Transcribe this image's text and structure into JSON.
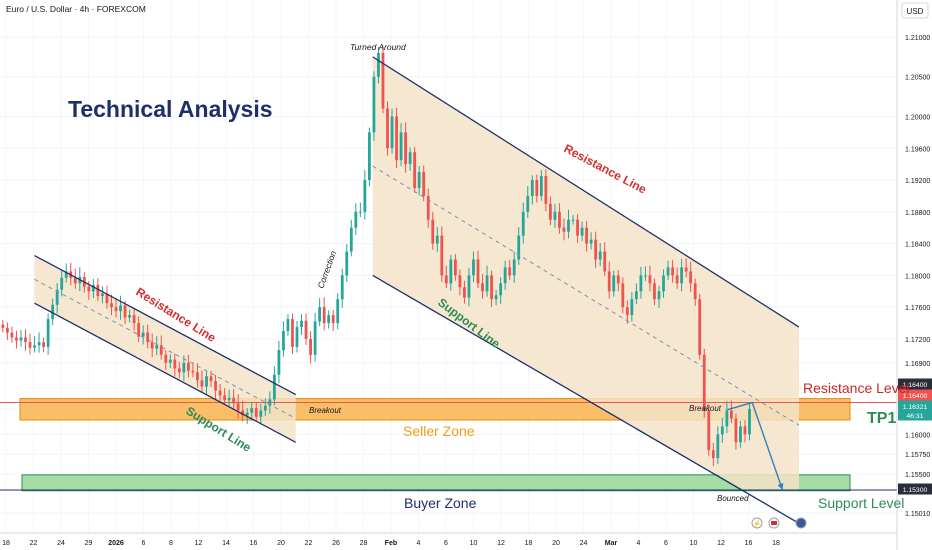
{
  "symbol_header": "Euro / U.S. Dollar · 4h · FOREXCOM",
  "currency_label": "USD",
  "headline": "Technical Analysis",
  "colors": {
    "up": "#26a69a",
    "down": "#ef5350",
    "channel_line": "#1e2f6b",
    "channel_fill": "#f3e3c8",
    "seller_zone": "#f7a834",
    "buyer_zone": "#8fd48f",
    "resistance_text": "#d32f2f",
    "support_text": "#2e8b57",
    "zone_label_orange": "#f39c12",
    "projection_arrow": "#2f7fc1"
  },
  "annotations": {
    "turned_around": "Turned Around",
    "correction": "Correction",
    "breakout_left": "Breakout",
    "breakout_right": "Breakout",
    "bounced": "Bounced",
    "resistance_line_left": "Resistance Line",
    "support_line_left": "Support Line",
    "resistance_line_right": "Resistance Line",
    "support_line_right": "Support Line",
    "seller_zone": "Seller Zone",
    "buyer_zone": "Buyer Zone",
    "resistance_level": "Resistance Level",
    "support_level": "Support Level",
    "tp1": "TP1"
  },
  "price_badges": [
    {
      "label": "1.16400",
      "value": 1.164,
      "color": "#2a2e39"
    },
    {
      "label": "1.16400",
      "value": 1.16385,
      "color": "#ef5350"
    },
    {
      "label": "1.16321",
      "value": 1.16321,
      "color": "#26a69a"
    },
    {
      "label": "46:31",
      "value": 1.1629,
      "color": "#26a69a"
    },
    {
      "label": "1.15300",
      "value": 1.153,
      "color": "#2a2e39"
    }
  ],
  "chart_data": {
    "type": "candlestick",
    "y_axis_ticks": [
      "1.21000",
      "1.20500",
      "1.20000",
      "1.19600",
      "1.19200",
      "1.18800",
      "1.18400",
      "1.18000",
      "1.17600",
      "1.17200",
      "1.16900",
      "1.16000",
      "1.15750",
      "1.15500",
      "1.15010"
    ],
    "x_axis_ticks": [
      "18",
      "22",
      "24",
      "29",
      "2026",
      "6",
      "8",
      "12",
      "14",
      "16",
      "20",
      "22",
      "26",
      "28",
      "Feb",
      "4",
      "6",
      "10",
      "12",
      "18",
      "20",
      "24",
      "Mar",
      "4",
      "6",
      "10",
      "12",
      "16",
      "18"
    ],
    "ylim": [
      1.1495,
      1.213
    ],
    "resistance_level": 1.164,
    "support_level": 1.153,
    "seller_zone": [
      1.1618,
      1.1645
    ],
    "buyer_zone": [
      1.1529,
      1.1549
    ],
    "left_channel": {
      "upper": [
        [
          1,
          1.1825
        ],
        [
          10.5,
          1.165
        ]
      ],
      "lower": [
        [
          1,
          1.1765
        ],
        [
          10.5,
          1.159
        ]
      ]
    },
    "right_channel": {
      "upper": [
        [
          13.3,
          1.2075
        ],
        [
          28.8,
          1.1735
        ]
      ],
      "lower": [
        [
          13.3,
          1.18
        ],
        [
          28.8,
          1.1488
        ]
      ]
    },
    "projection_path": [
      [
        26.2,
        1.1631
      ],
      [
        27.1,
        1.164
      ],
      [
        28.2,
        1.153
      ]
    ],
    "closes": [
      1.1734,
      1.1728,
      1.1722,
      1.1718,
      1.1722,
      1.1716,
      1.1709,
      1.1712,
      1.1716,
      1.171,
      1.1745,
      1.1763,
      1.1782,
      1.1797,
      1.1805,
      1.1797,
      1.179,
      1.1798,
      1.1786,
      1.178,
      1.1788,
      1.1774,
      1.1777,
      1.1765,
      1.176,
      1.1755,
      1.1762,
      1.1747,
      1.175,
      1.174,
      1.1723,
      1.1728,
      1.1716,
      1.1708,
      1.1712,
      1.17,
      1.169,
      1.1694,
      1.1683,
      1.1678,
      1.169,
      1.168,
      1.1678,
      1.1668,
      1.166,
      1.1673,
      1.1667,
      1.1655,
      1.1649,
      1.1643,
      1.1646,
      1.1639,
      1.163,
      1.1624,
      1.1627,
      1.1633,
      1.1622,
      1.163,
      1.1636,
      1.1644,
      1.1675,
      1.1706,
      1.173,
      1.1745,
      1.171,
      1.1735,
      1.1743,
      1.172,
      1.17,
      1.1742,
      1.176,
      1.174,
      1.175,
      1.174,
      1.177,
      1.18,
      1.183,
      1.186,
      1.188,
      1.188,
      1.192,
      1.198,
      1.205,
      1.208,
      1.201,
      1.196,
      1.2,
      1.1945,
      1.198,
      1.194,
      1.1955,
      1.191,
      1.193,
      1.19,
      1.187,
      1.184,
      1.185,
      1.18,
      1.179,
      1.182,
      1.18,
      1.1785,
      1.1772,
      1.18,
      1.182,
      1.179,
      1.178,
      1.18,
      1.177,
      1.1775,
      1.179,
      1.181,
      1.18,
      1.182,
      1.185,
      1.188,
      1.19,
      1.192,
      1.19,
      1.1925,
      1.189,
      1.187,
      1.188,
      1.186,
      1.1855,
      1.187,
      1.187,
      1.185,
      1.186,
      1.184,
      1.1845,
      1.182,
      1.183,
      1.1805,
      1.178,
      1.18,
      1.179,
      1.176,
      1.175,
      1.177,
      1.178,
      1.18,
      1.18,
      1.179,
      1.177,
      1.178,
      1.18,
      1.181,
      1.18,
      1.179,
      1.181,
      1.1805,
      1.179,
      1.177,
      1.17,
      1.163,
      1.158,
      1.157,
      1.16,
      1.161,
      1.163,
      1.162,
      1.159,
      1.161,
      1.16,
      1.1632
    ]
  }
}
